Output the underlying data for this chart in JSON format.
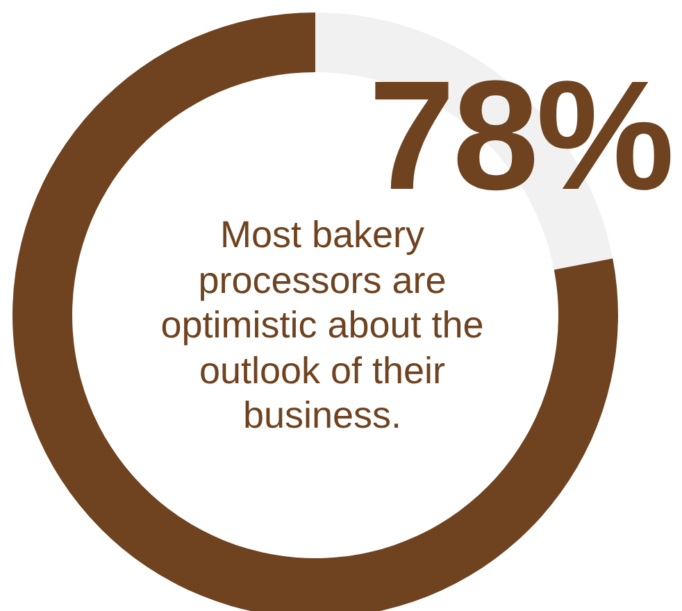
{
  "chart_data": {
    "type": "donut",
    "categories": [
      null,
      null
    ],
    "values": [
      22,
      78
    ],
    "colors": [
      "#f0f1f0",
      "#6f4320"
    ],
    "annotations": [
      "78%",
      "Most bakery processors are optimistic about the outlook of their business."
    ]
  }
}
